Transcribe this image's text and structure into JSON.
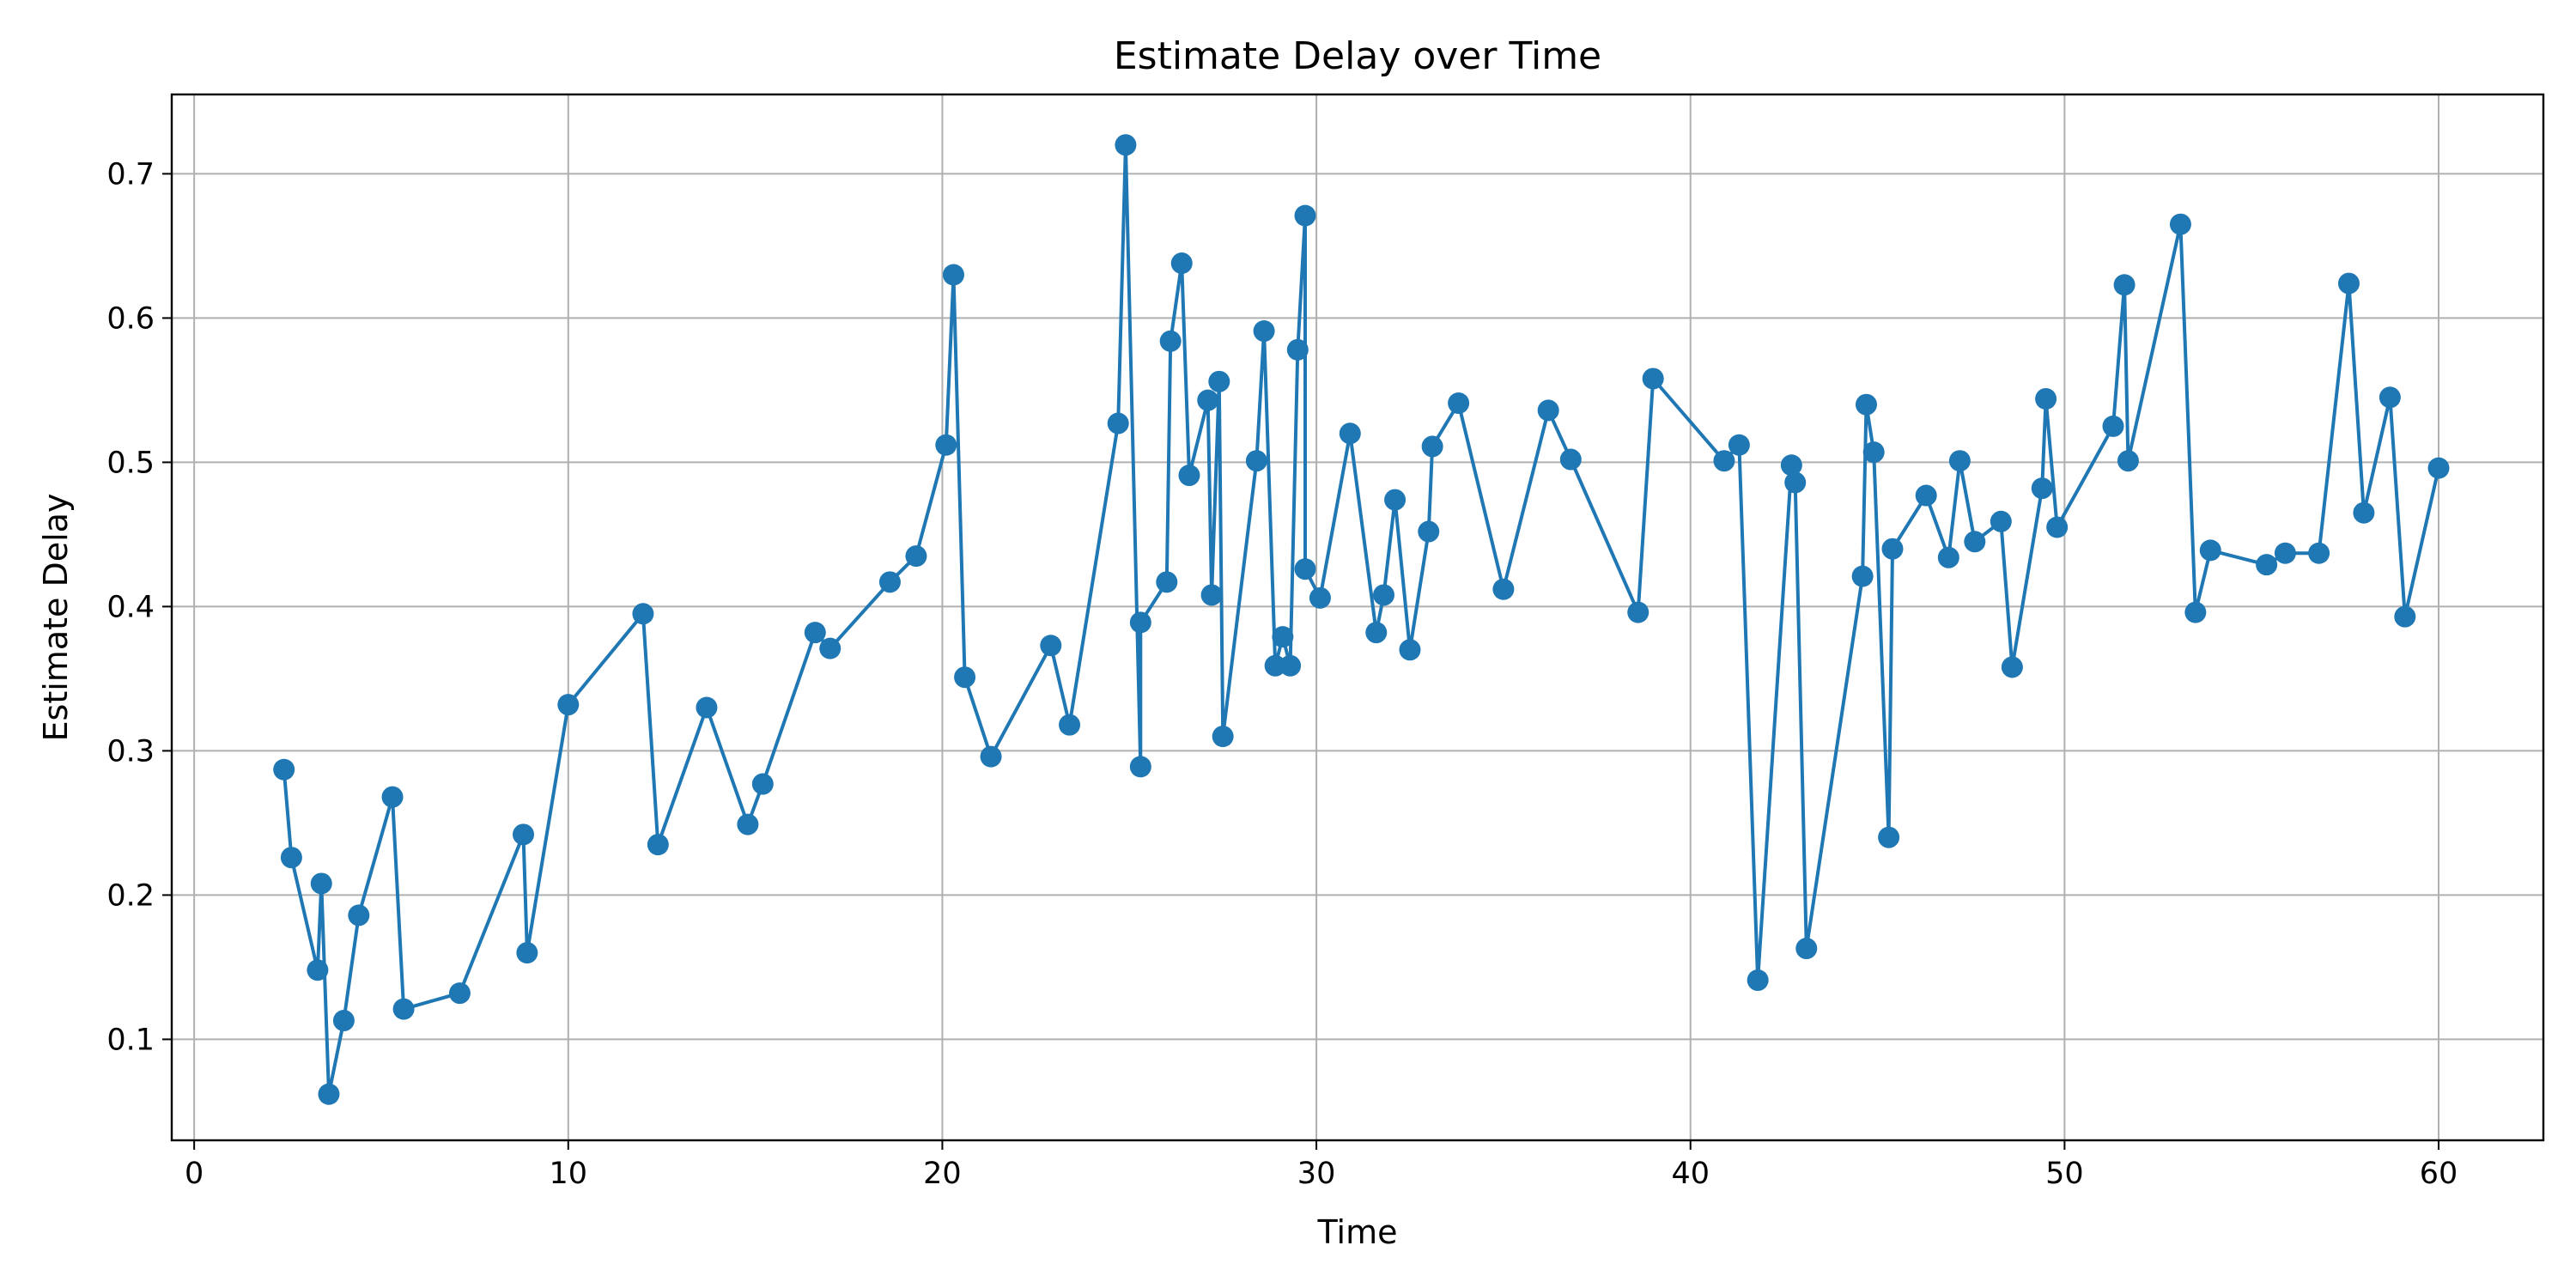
{
  "chart_data": {
    "type": "line",
    "title": "Estimate Delay over Time",
    "xlabel": "Time",
    "ylabel": "Estimate Delay",
    "xlim": [
      -0.6,
      62.8
    ],
    "ylim": [
      0.03,
      0.755
    ],
    "x_ticks": [
      0,
      10,
      20,
      30,
      40,
      50,
      60
    ],
    "y_ticks": [
      0.1,
      0.2,
      0.3,
      0.4,
      0.5,
      0.6,
      0.7
    ],
    "x_tick_labels": [
      "0",
      "10",
      "20",
      "30",
      "40",
      "50",
      "60"
    ],
    "y_tick_labels": [
      "0.1",
      "0.2",
      "0.3",
      "0.4",
      "0.5",
      "0.6",
      "0.7"
    ],
    "grid": true,
    "legend": "none",
    "marker": "circle",
    "series": [
      {
        "color": "#1f77b4",
        "x": [
          2.4,
          2.6,
          3.3,
          3.4,
          3.6,
          4.0,
          4.4,
          5.3,
          5.6,
          7.1,
          8.8,
          8.9,
          10.0,
          12.0,
          12.4,
          13.7,
          14.8,
          15.2,
          16.6,
          17.0,
          18.6,
          19.3,
          20.1,
          20.3,
          20.6,
          21.3,
          22.9,
          23.4,
          24.7,
          24.9,
          25.3,
          25.3,
          26.0,
          26.1,
          26.4,
          26.6,
          27.1,
          27.2,
          27.4,
          27.5,
          28.4,
          28.6,
          28.9,
          29.1,
          29.3,
          29.5,
          29.7,
          29.7,
          30.1,
          30.9,
          31.6,
          31.8,
          32.1,
          32.5,
          33.0,
          33.1,
          33.8,
          35.0,
          36.2,
          36.8,
          38.6,
          39.0,
          40.9,
          41.3,
          41.8,
          42.7,
          42.8,
          43.1,
          44.6,
          44.7,
          44.9,
          45.3,
          45.4,
          46.3,
          46.9,
          47.2,
          47.6,
          48.3,
          48.6,
          49.4,
          49.5,
          49.8,
          51.3,
          51.6,
          51.7,
          53.1,
          53.5,
          53.9,
          55.4,
          55.9,
          56.8,
          57.6,
          58.0,
          58.7,
          59.1,
          60.0
        ],
        "y": [
          0.287,
          0.226,
          0.148,
          0.208,
          0.062,
          0.113,
          0.186,
          0.268,
          0.121,
          0.132,
          0.242,
          0.16,
          0.332,
          0.395,
          0.235,
          0.33,
          0.249,
          0.277,
          0.382,
          0.371,
          0.417,
          0.435,
          0.512,
          0.63,
          0.351,
          0.296,
          0.373,
          0.318,
          0.527,
          0.72,
          0.289,
          0.389,
          0.417,
          0.584,
          0.638,
          0.491,
          0.543,
          0.408,
          0.556,
          0.31,
          0.501,
          0.591,
          0.359,
          0.379,
          0.359,
          0.578,
          0.671,
          0.426,
          0.406,
          0.52,
          0.382,
          0.408,
          0.474,
          0.37,
          0.452,
          0.511,
          0.541,
          0.412,
          0.536,
          0.502,
          0.396,
          0.558,
          0.501,
          0.512,
          0.141,
          0.498,
          0.486,
          0.163,
          0.421,
          0.54,
          0.507,
          0.24,
          0.44,
          0.477,
          0.434,
          0.501,
          0.445,
          0.459,
          0.358,
          0.482,
          0.544,
          0.455,
          0.525,
          0.623,
          0.501,
          0.665,
          0.396,
          0.439,
          0.429,
          0.437,
          0.437,
          0.624,
          0.465,
          0.545,
          0.393,
          0.496
        ]
      }
    ]
  }
}
